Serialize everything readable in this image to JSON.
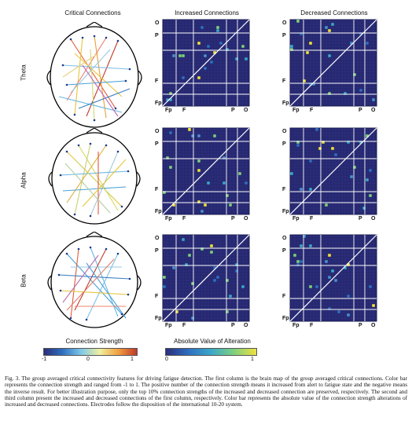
{
  "figure": {
    "columns": [
      "Critical Connections",
      "Increased Connections",
      "Decreased Connections"
    ],
    "rows": [
      "Theta",
      "Alpha",
      "Beta"
    ],
    "matrix_ticks_y": [
      "O",
      "P",
      "F",
      "Fp"
    ],
    "matrix_ticks_x": [
      "Fp",
      "F",
      "P",
      "O"
    ],
    "colorbar_left": {
      "title": "Connection Strength",
      "min": "-1",
      "mid": "0",
      "max": "1"
    },
    "colorbar_right": {
      "title": "Absolute Value of Alteration",
      "min": "0",
      "max": "1"
    }
  },
  "caption": "Fig. 3.  The group averaged critical connectivity features for driving fatigue detection. The first column is the brain map of the group averaged critical connections. Color bar represents the connection strength and ranged from -1 to 1. The positive number of the connection strength means it increased from alert to fatigue state and the negative means the inverse result. For better illustration purpose, only the top 10% connection strengths of the increased and decreased connection are preserved, respectively. The second and third column present the increased and decreased connections of the first column, respectively. Color bar represents the absolute value of the connection strength alterations of increased and decreased connections. Electrodes follow the disposition of the international 10-20 system.",
  "colors": {
    "matrix_bg": "#2b2d7a",
    "grid": "#ffffff"
  }
}
